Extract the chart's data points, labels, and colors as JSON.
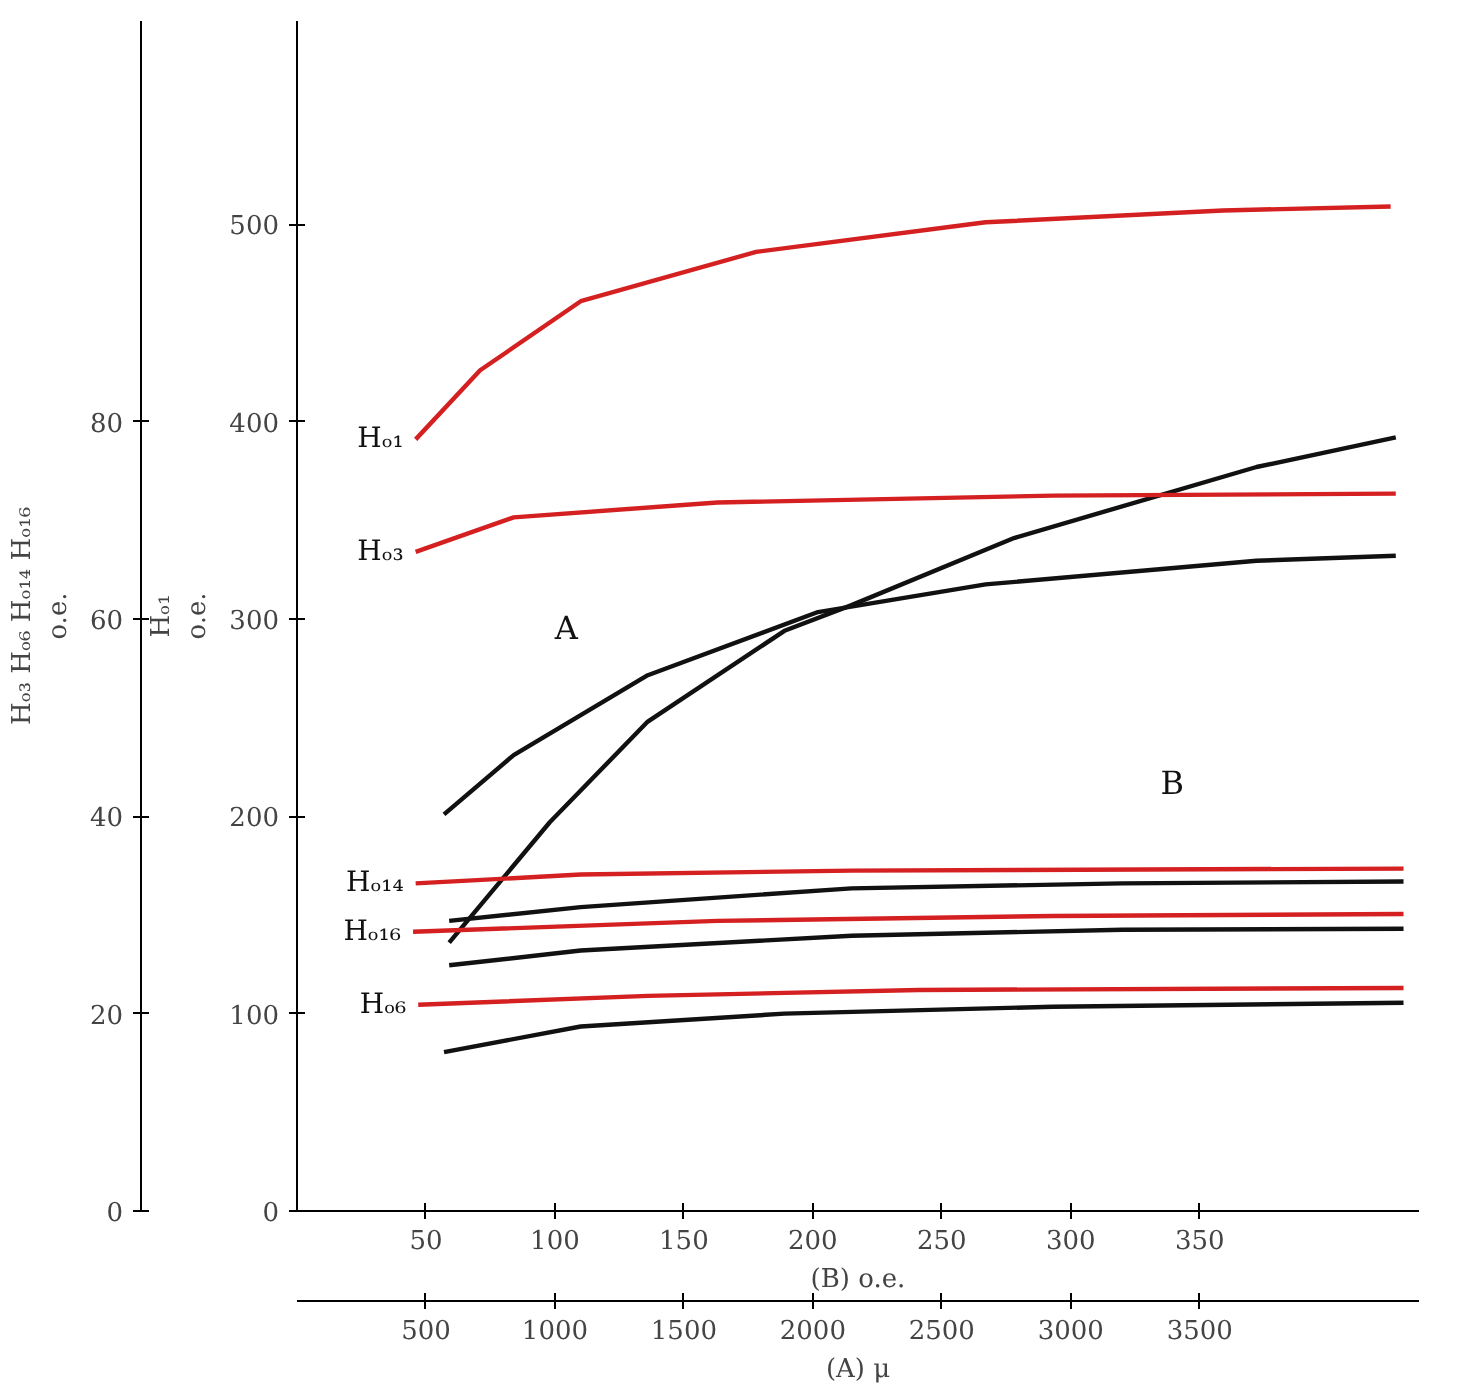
{
  "chart_data": {
    "type": "line",
    "xlabel": "(B) o.e.",
    "x2label": "(A) μ",
    "ylabel": "Hₒ₁\no.e.",
    "y2label": "Hₒ₃ Hₒ₆ Hₒ₁₄ Hₒ₁₆\no.e.",
    "xlim": [
      0,
      435
    ],
    "xticks": [
      50,
      100,
      150,
      200,
      250,
      300,
      350
    ],
    "x2lim": [
      0,
      4350
    ],
    "x2ticks": [
      500,
      1000,
      1500,
      2000,
      2500,
      3000,
      3500
    ],
    "ylim": [
      0,
      603
    ],
    "yticks": [
      0,
      100,
      200,
      300,
      400,
      500
    ],
    "y2lim": [
      0,
      120.6
    ],
    "y2ticks": [
      0,
      20,
      40,
      60,
      80
    ],
    "grid": false,
    "series": [
      {
        "name": "Hₒ₁",
        "color": "#d42020",
        "axis": "y",
        "x": [
          46,
          71,
          110,
          178,
          267,
          359,
          424
        ],
        "values": [
          391,
          426,
          461,
          486,
          501,
          507,
          509
        ]
      },
      {
        "color": "#111111",
        "axis": "y",
        "x": [
          59,
          98,
          136,
          189,
          215,
          278,
          372,
          426
        ],
        "values": [
          136,
          197,
          248,
          294,
          307,
          341,
          377,
          392
        ]
      },
      {
        "name": "Hₒ₃",
        "color": "#d42020",
        "axis": "y2",
        "x": [
          46,
          84,
          163,
          293,
          426
        ],
        "values": [
          66.8,
          70.3,
          71.8,
          72.5,
          72.7
        ]
      },
      {
        "color": "#111111",
        "axis": "y2",
        "x": [
          57,
          84,
          136,
          202,
          267,
          372,
          426
        ],
        "values": [
          40.2,
          46.2,
          54.3,
          60.7,
          63.5,
          65.9,
          66.4
        ]
      },
      {
        "name": "Hₒ₁₄",
        "color": "#d42020",
        "axis": "y2",
        "x": [
          46,
          110,
          215,
          429
        ],
        "values": [
          33.2,
          34.1,
          34.5,
          34.7
        ]
      },
      {
        "color": "#111111",
        "axis": "y2",
        "x": [
          59,
          110,
          215,
          320,
          429
        ],
        "values": [
          29.4,
          30.8,
          32.7,
          33.2,
          33.4
        ]
      },
      {
        "name": "Hₒ₁₆",
        "color": "#d42020",
        "axis": "y2",
        "x": [
          45,
          163,
          293,
          429
        ],
        "values": [
          28.3,
          29.4,
          29.9,
          30.1
        ]
      },
      {
        "color": "#111111",
        "axis": "y2",
        "x": [
          59,
          110,
          215,
          320,
          429
        ],
        "values": [
          24.9,
          26.4,
          27.9,
          28.5,
          28.6
        ]
      },
      {
        "name": "Hₒ₆",
        "color": "#d42020",
        "axis": "y2",
        "x": [
          47,
          136,
          241,
          429
        ],
        "values": [
          20.9,
          21.8,
          22.4,
          22.6
        ]
      },
      {
        "color": "#111111",
        "axis": "y2",
        "x": [
          57,
          110,
          189,
          293,
          429
        ],
        "values": [
          16.1,
          18.7,
          20.0,
          20.7,
          21.1
        ]
      }
    ],
    "annotations": [
      "A",
      "B"
    ]
  }
}
